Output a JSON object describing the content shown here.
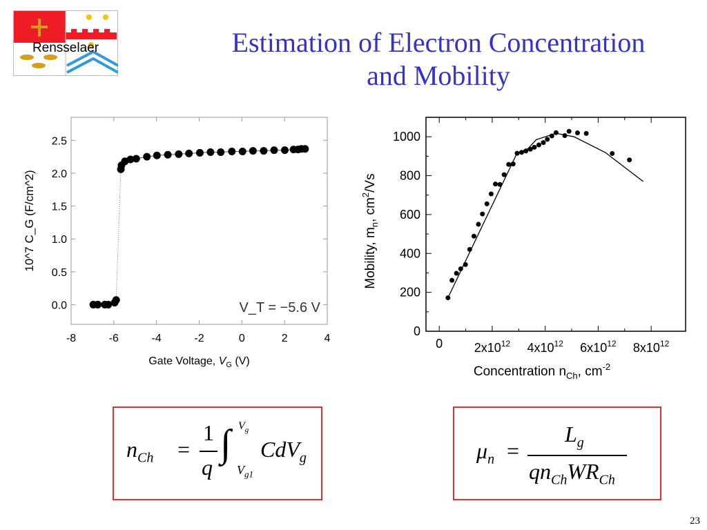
{
  "logo": {
    "text": "Rensselaer",
    "colors": {
      "red": "#ee1c25",
      "blue": "#3399dd",
      "gold": "#d4a017"
    }
  },
  "title": {
    "line1": "Estimation of Electron Concentration",
    "line2": "and Mobility",
    "color": "#3333cc"
  },
  "page_number": "23",
  "chart_data": [
    {
      "type": "scatter",
      "ylabel": "10^7 C_G (F/cm^2)",
      "xlabel": "Gate Voltage, V_G (V)",
      "xlim": [
        -8,
        4
      ],
      "ylim": [
        -0.3,
        2.85
      ],
      "xticks": [
        "-8",
        "-6",
        "-4",
        "-2",
        "0",
        "2",
        "4"
      ],
      "xtick_values": [
        -8,
        -6,
        -4,
        -2,
        0,
        2,
        4
      ],
      "yticks": [
        "0.0",
        "0.5",
        "1.0",
        "1.5",
        "2.0",
        "2.5"
      ],
      "ytick_values": [
        0,
        0.5,
        1,
        1.5,
        2,
        2.5
      ],
      "annotation": "V_T = −5.6 V",
      "grid": false,
      "x": [
        -6.96,
        -6.75,
        -6.42,
        -6.26,
        -5.96,
        -5.89,
        -5.67,
        -5.64,
        -5.48,
        -5.22,
        -4.95,
        -4.45,
        -3.98,
        -3.47,
        -2.96,
        -2.48,
        -1.97,
        -1.47,
        -0.99,
        -0.47,
        0.03,
        0.52,
        1.02,
        1.51,
        2.01,
        2.42,
        2.63,
        2.79,
        2.96
      ],
      "y": [
        0,
        0,
        0,
        0,
        0.03,
        0.07,
        2.06,
        2.12,
        2.18,
        2.21,
        2.22,
        2.25,
        2.27,
        2.28,
        2.29,
        2.3,
        2.31,
        2.32,
        2.32,
        2.33,
        2.33,
        2.34,
        2.34,
        2.35,
        2.35,
        2.36,
        2.36,
        2.37,
        2.37
      ]
    },
    {
      "type": "scatter",
      "ylabel": "Mobility, m_n, cm^2/Vs",
      "xlabel": "Concentration n_Ch, cm^-2",
      "xlim": [
        -500000000000.0,
        9300000000000.0
      ],
      "ylim": [
        0,
        1100
      ],
      "xticks": [
        "0",
        "2x10^12",
        "4x10^12",
        "6x10^12",
        "8x10^12"
      ],
      "xtick_values": [
        0,
        2000000000000.0,
        4000000000000.0,
        6000000000000.0,
        8000000000000.0
      ],
      "yticks": [
        "0",
        "200",
        "400",
        "600",
        "800",
        "1000"
      ],
      "ytick_values": [
        0,
        200,
        400,
        600,
        800,
        1000
      ],
      "grid": false,
      "x": [
        330000000000.0,
        480000000000.0,
        650000000000.0,
        810000000000.0,
        990000000000.0,
        1150000000000.0,
        1310000000000.0,
        1480000000000.0,
        1630000000000.0,
        1800000000000.0,
        1960000000000.0,
        2120000000000.0,
        2290000000000.0,
        2450000000000.0,
        2620000000000.0,
        2790000000000.0,
        2940000000000.0,
        3110000000000.0,
        3270000000000.0,
        3440000000000.0,
        3590000000000.0,
        3760000000000.0,
        3930000000000.0,
        4080000000000.0,
        4250000000000.0,
        4410000000000.0,
        4740000000000.0,
        4900000000000.0,
        5220000000000.0,
        5550000000000.0,
        6530000000000.0,
        7180000000000.0
      ],
      "y": [
        172,
        262,
        298,
        321,
        343,
        421,
        489,
        550,
        603,
        655,
        706,
        757,
        755,
        805,
        858,
        860,
        915,
        920,
        927,
        936,
        946,
        958,
        970,
        987,
        1004,
        1021,
        1006,
        1028,
        1020,
        1017,
        914,
        881
      ],
      "fit_line": {
        "x": [
          330000000000.0,
          2920000000000.0,
          3360000000000.0,
          3660000000000.0,
          4410000000000.0,
          5090000000000.0,
          6270000000000.0,
          7700000000000.0
        ],
        "y": [
          172,
          911,
          940,
          985,
          1018,
          1000,
          919,
          770
        ]
      }
    }
  ],
  "formulas": {
    "left": {
      "lhs": "n",
      "lhs_sub": "Ch",
      "eq": "=",
      "num": "1",
      "den": "q",
      "upper": "V",
      "upper_sub": "g",
      "lower": "V",
      "lower_sub": "g1",
      "integrand": "CdV",
      "integrand_sub": "g"
    },
    "right": {
      "lhs": "μ",
      "lhs_sub": "n",
      "eq": "=",
      "num": "L",
      "num_sub": "g",
      "den1": "qn",
      "den1_sub": "Ch",
      "den2": "WR",
      "den2_sub": "Ch"
    },
    "border_color": "#e03030"
  }
}
